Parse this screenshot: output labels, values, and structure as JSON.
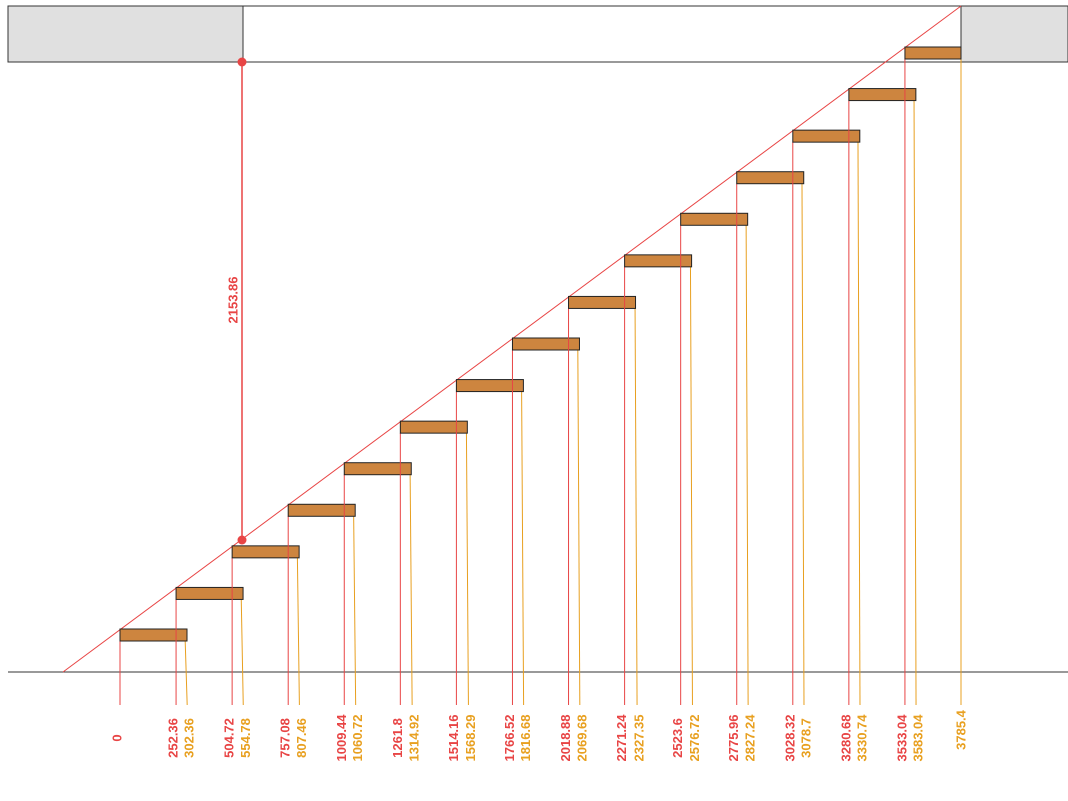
{
  "dimensions": {
    "height": 2153.86,
    "positions": [
      0,
      252.36,
      504.72,
      757.08,
      1009.44,
      1261.8,
      1514.16,
      1766.52,
      2018.88,
      2271.24,
      2523.6,
      2775.96,
      3028.32,
      3280.68,
      3533.04
    ],
    "nosings": [
      302.36,
      554.78,
      807.46,
      1060.72,
      1314.92,
      1568.29,
      1816.68,
      2069.68,
      2327.35,
      2576.72,
      2827.24,
      3078.7,
      3330.74,
      3583.04,
      3785.4
    ]
  }
}
